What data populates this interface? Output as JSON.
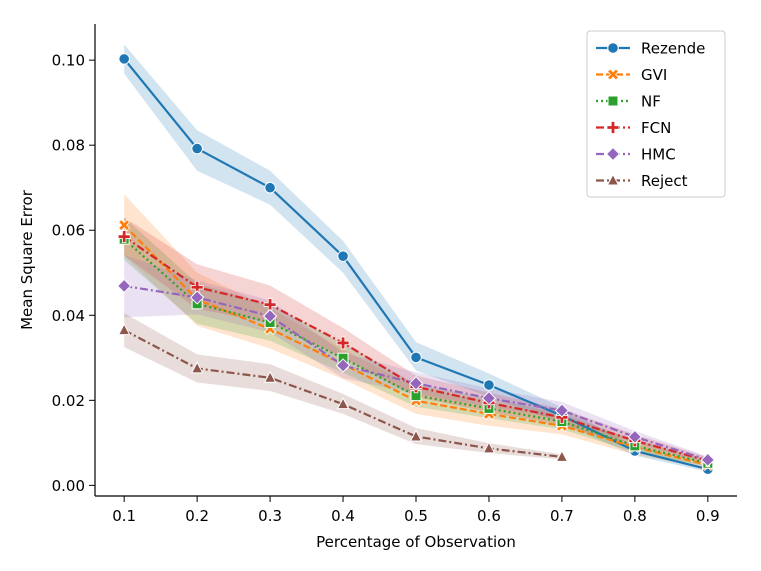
{
  "chart_data": {
    "type": "line",
    "title": "",
    "xlabel": "Percentage of Observation",
    "ylabel": "Mean Square Error",
    "xlim": [
      0.06,
      0.94
    ],
    "ylim": [
      -0.0025,
      0.1085
    ],
    "grid": false,
    "legend_position": "top-right",
    "xticks": [
      "0.1",
      "0.2",
      "0.3",
      "0.4",
      "0.5",
      "0.6",
      "0.7",
      "0.8",
      "0.9"
    ],
    "xtick_values": [
      0.1,
      0.2,
      0.3,
      0.4,
      0.5,
      0.6,
      0.7,
      0.8,
      0.9
    ],
    "yticks": [
      "0.00",
      "0.02",
      "0.04",
      "0.06",
      "0.08",
      "0.10"
    ],
    "ytick_values": [
      0.0,
      0.02,
      0.04,
      0.06,
      0.08,
      0.1
    ],
    "series": [
      {
        "name": "Rezende",
        "color": "#1f77b4",
        "linestyle": "solid",
        "marker": "circle",
        "x": [
          0.1,
          0.2,
          0.3,
          0.4,
          0.5,
          0.6,
          0.7,
          0.8,
          0.9
        ],
        "values": [
          0.1003,
          0.0792,
          0.07,
          0.0539,
          0.0301,
          0.0236,
          0.0164,
          0.0081,
          0.0038
        ],
        "lower": [
          0.0968,
          0.074,
          0.066,
          0.05,
          0.027,
          0.0208,
          0.0146,
          0.007,
          0.0032
        ],
        "upper": [
          0.1037,
          0.0835,
          0.074,
          0.0575,
          0.0337,
          0.0263,
          0.0183,
          0.0092,
          0.0045
        ]
      },
      {
        "name": "GVI",
        "color": "#ff7f0e",
        "linestyle": "dashed",
        "marker": "x",
        "x": [
          0.1,
          0.2,
          0.3,
          0.4,
          0.5,
          0.6,
          0.7,
          0.8,
          0.9
        ],
        "values": [
          0.0612,
          0.0437,
          0.0368,
          0.0285,
          0.0199,
          0.0168,
          0.014,
          0.009,
          0.0048
        ],
        "lower": [
          0.054,
          0.0375,
          0.0322,
          0.025,
          0.0168,
          0.014,
          0.012,
          0.0072,
          0.004
        ],
        "upper": [
          0.0685,
          0.05,
          0.0417,
          0.032,
          0.023,
          0.0197,
          0.016,
          0.0108,
          0.0056
        ]
      },
      {
        "name": "NF",
        "color": "#2ca02c",
        "linestyle": "dotted",
        "marker": "square",
        "x": [
          0.1,
          0.2,
          0.3,
          0.4,
          0.5,
          0.6,
          0.7,
          0.8,
          0.9
        ],
        "values": [
          0.0579,
          0.0427,
          0.0383,
          0.0299,
          0.0211,
          0.0181,
          0.015,
          0.0093,
          0.0052
        ],
        "lower": [
          0.053,
          0.038,
          0.034,
          0.0265,
          0.0185,
          0.0158,
          0.0132,
          0.0078,
          0.0045
        ],
        "upper": [
          0.063,
          0.0475,
          0.0425,
          0.0335,
          0.0238,
          0.0205,
          0.0168,
          0.0108,
          0.006
        ]
      },
      {
        "name": "FCN",
        "color": "#d62728",
        "linestyle": "dashdot",
        "marker": "plus",
        "x": [
          0.1,
          0.2,
          0.3,
          0.4,
          0.5,
          0.6,
          0.7,
          0.8,
          0.9
        ],
        "values": [
          0.0585,
          0.0466,
          0.0425,
          0.0335,
          0.0232,
          0.0194,
          0.016,
          0.0105,
          0.0058
        ],
        "lower": [
          0.054,
          0.0415,
          0.0382,
          0.03,
          0.0208,
          0.0172,
          0.0142,
          0.009,
          0.005
        ],
        "upper": [
          0.063,
          0.052,
          0.047,
          0.037,
          0.0258,
          0.0218,
          0.018,
          0.012,
          0.0066
        ]
      },
      {
        "name": "HMC",
        "color": "#9467bd",
        "linestyle": "dashdot",
        "marker": "diamond",
        "x": [
          0.1,
          0.2,
          0.3,
          0.4,
          0.5,
          0.6,
          0.7,
          0.8,
          0.9
        ],
        "values": [
          0.0469,
          0.0442,
          0.0398,
          0.0282,
          0.024,
          0.0205,
          0.0176,
          0.0114,
          0.006
        ],
        "lower": [
          0.0395,
          0.0402,
          0.036,
          0.0252,
          0.0215,
          0.0184,
          0.0157,
          0.01,
          0.0052
        ],
        "upper": [
          0.0542,
          0.0482,
          0.0435,
          0.0312,
          0.0266,
          0.0228,
          0.0196,
          0.0128,
          0.0068
        ]
      },
      {
        "name": "Reject",
        "color": "#8c564b",
        "linestyle": "dashdot",
        "marker": "triangle",
        "x": [
          0.1,
          0.2,
          0.3,
          0.4,
          0.5,
          0.6,
          0.7
        ],
        "values": [
          0.0365,
          0.0275,
          0.0253,
          0.0191,
          0.0115,
          0.0087,
          0.0067
        ],
        "lower": [
          0.0325,
          0.0242,
          0.0222,
          0.0168,
          0.0097,
          0.0076,
          0.0061
        ],
        "upper": [
          0.0405,
          0.0308,
          0.0285,
          0.0215,
          0.0135,
          0.0099,
          0.0073
        ]
      }
    ]
  }
}
